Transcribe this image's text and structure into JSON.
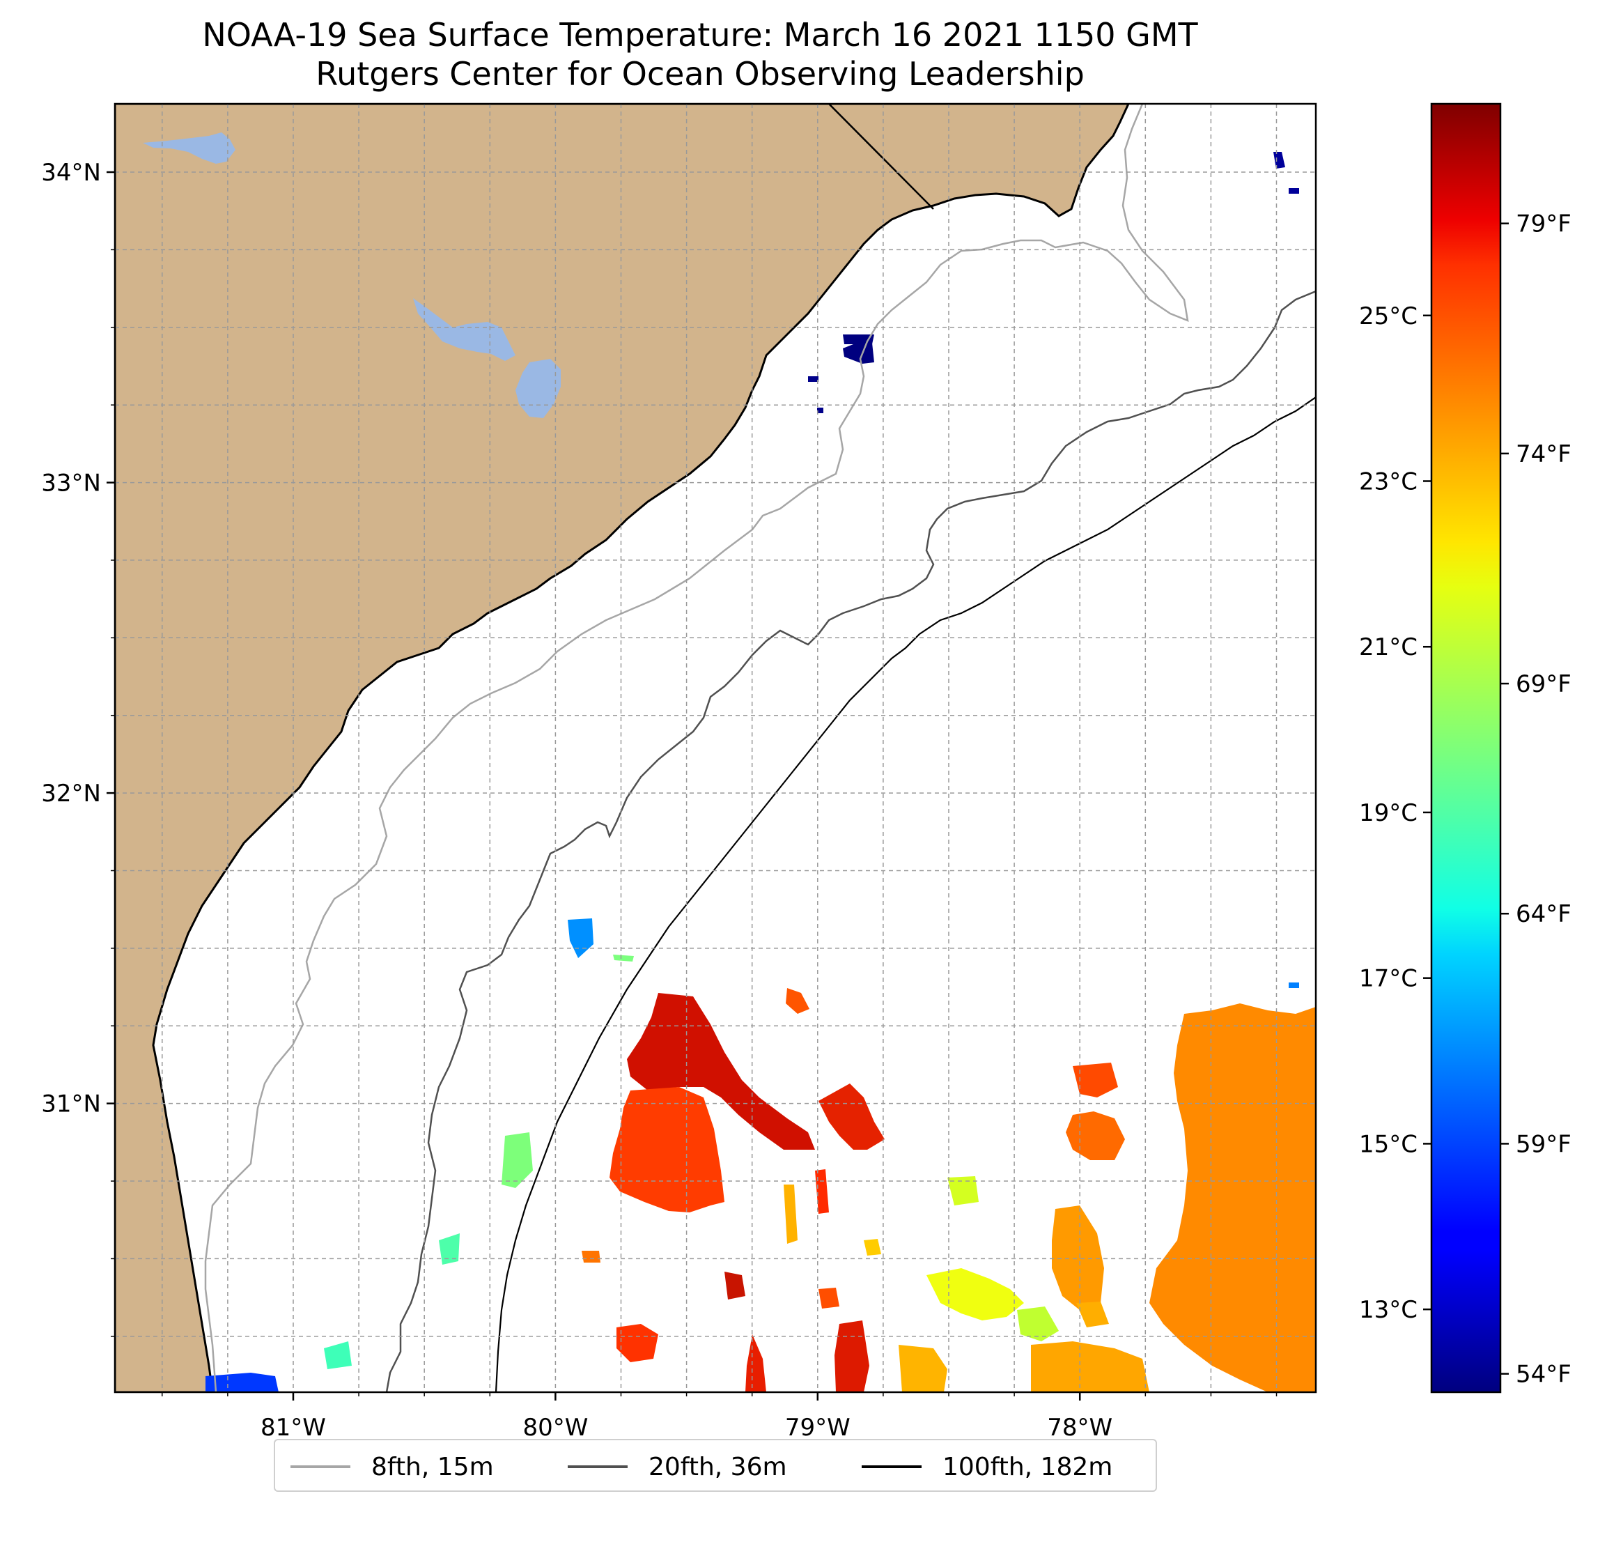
{
  "title": {
    "line1": "NOAA-19 Sea Surface Temperature: March 16 2021 1150 GMT",
    "line2": "Rutgers Center for Ocean Observing Leadership"
  },
  "map": {
    "lon_range": [
      -81.68,
      -77.1
    ],
    "lat_range": [
      30.07,
      34.22
    ],
    "lat_ticks": [
      {
        "value": 34,
        "label": "34°N"
      },
      {
        "value": 33,
        "label": "33°N"
      },
      {
        "value": 32,
        "label": "32°N"
      },
      {
        "value": 31,
        "label": "31°N"
      }
    ],
    "lon_ticks": [
      {
        "value": -81,
        "label": "81°W"
      },
      {
        "value": -80,
        "label": "80°W"
      },
      {
        "value": -79,
        "label": "79°W"
      },
      {
        "value": -78,
        "label": "78°W"
      }
    ],
    "grid": true,
    "land_color": "#d2b48c",
    "water_color": "#9ab8e4"
  },
  "colorbar": {
    "colormap": "jet",
    "celsius_ticks": [
      {
        "value": 25,
        "label": "25°C"
      },
      {
        "value": 23,
        "label": "23°C"
      },
      {
        "value": 21,
        "label": "21°C"
      },
      {
        "value": 19,
        "label": "19°C"
      },
      {
        "value": 17,
        "label": "17°C"
      },
      {
        "value": 15,
        "label": "15°C"
      },
      {
        "value": 13,
        "label": "13°C"
      }
    ],
    "fahrenheit_ticks": [
      {
        "value": 79,
        "label": "79°F"
      },
      {
        "value": 74,
        "label": "74°F"
      },
      {
        "value": 69,
        "label": "69°F"
      },
      {
        "value": 64,
        "label": "64°F"
      },
      {
        "value": 59,
        "label": "59°F"
      },
      {
        "value": 54,
        "label": "54°F"
      }
    ]
  },
  "legend": {
    "items": [
      {
        "label": "8fth, 15m",
        "color": "#a6a6a6"
      },
      {
        "label": "20fth, 36m",
        "color": "#505050"
      },
      {
        "label": "100fth, 182m",
        "color": "#000000"
      }
    ]
  }
}
